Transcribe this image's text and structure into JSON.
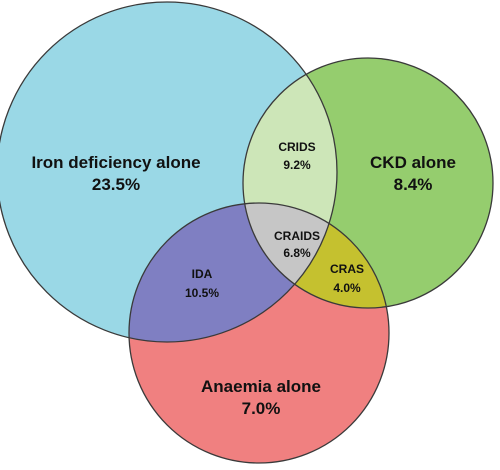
{
  "colors": {
    "iron_deficiency": "#9ad8e6",
    "ckd": "#95cd6e",
    "anaemia": "#f08080",
    "crids": "#cde6b8",
    "ida": "#7f7fc2",
    "craids": "#c6c6c6",
    "cras": "#c5c12f",
    "outline": "#3a3a3a"
  },
  "regions": {
    "iron_deficiency_alone": {
      "name": "Iron deficiency alone",
      "value": "23.5%"
    },
    "ckd_alone": {
      "name": "CKD alone",
      "value": "8.4%"
    },
    "anaemia_alone": {
      "name": "Anaemia alone",
      "value": "7.0%"
    },
    "crids": {
      "name": "CRIDS",
      "value": "9.2%"
    },
    "ida": {
      "name": "IDA",
      "value": "10.5%"
    },
    "craids": {
      "name": "CRAIDS",
      "value": "6.8%"
    },
    "cras": {
      "name": "CRAS",
      "value": "4.0%"
    }
  }
}
